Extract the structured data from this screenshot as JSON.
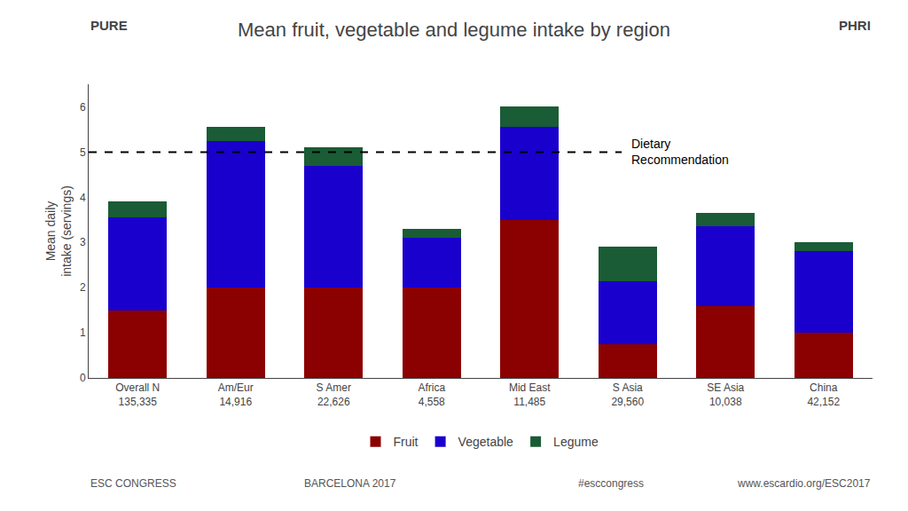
{
  "chart_data": {
    "type": "bar",
    "title": "Mean fruit, vegetable and legume intake by region",
    "ylabel": "Mean daily\nintake (servings)",
    "categories": [
      "Overall N\n135,335",
      "Am/Eur\n14,916",
      "S Amer\n22,626",
      "Africa\n4,558",
      "Mid East\n11,485",
      "S Asia\n29,560",
      "SE Asia\n10,038",
      "China\n42,152"
    ],
    "series": [
      {
        "name": "Fruit",
        "color": "#8B0000",
        "values": [
          1.5,
          2.0,
          2.0,
          2.0,
          3.5,
          0.75,
          1.6,
          1.0
        ]
      },
      {
        "name": "Vegetable",
        "color": "#1A00CC",
        "values": [
          2.05,
          3.25,
          2.7,
          1.1,
          2.05,
          1.4,
          1.75,
          1.8
        ]
      },
      {
        "name": "Legume",
        "color": "#1A5C35",
        "values": [
          0.35,
          0.3,
          0.4,
          0.2,
          0.45,
          0.75,
          0.3,
          0.2
        ]
      }
    ],
    "stacked": true,
    "ylim": [
      0,
      6.5
    ],
    "yticks": [
      0,
      1,
      2,
      3,
      4,
      5,
      6
    ],
    "grid": false,
    "legend": "bottom",
    "reference_line": {
      "value": 5.0,
      "label": "Dietary\nRecommendation"
    },
    "annotations": [
      "PURE",
      "PHRI",
      "ESC CONGRESS",
      "BARCELONA 2017",
      "#esccongress",
      "www.escardio.org/ESC2017"
    ]
  }
}
